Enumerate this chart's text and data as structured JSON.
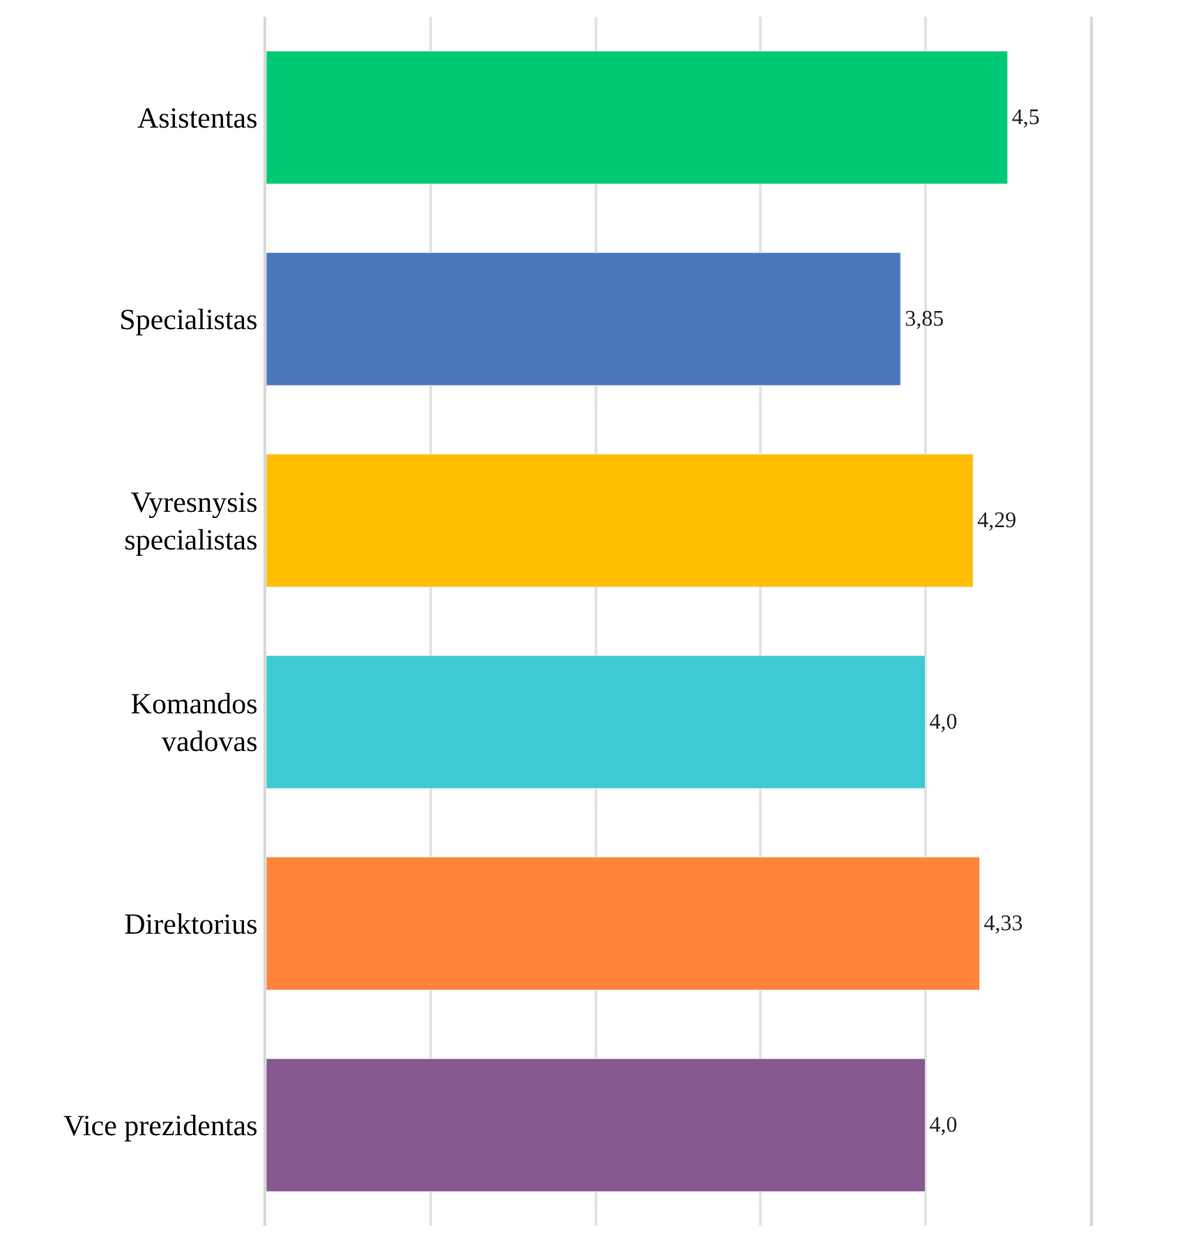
{
  "chart_data": {
    "type": "bar",
    "orientation": "horizontal",
    "categories": [
      "Asistentas",
      "Specialistas",
      "Vyresnysis\nspecialistas",
      "Komandos\nvadovas",
      "Direktorius",
      "Vice prezidentas"
    ],
    "values": [
      4.5,
      3.85,
      4.29,
      4.0,
      4.33,
      4.0
    ],
    "colors": [
      "#00c975",
      "#4a78bb",
      "#ffbf00",
      "#3ecbd0",
      "#ff8439",
      "#86588f"
    ],
    "value_labels": [
      "4,5",
      "3,85",
      "4,29",
      "4,0",
      "4,33",
      "4,0"
    ],
    "xlim": [
      0,
      5
    ],
    "xticks": [
      {
        "value": 0,
        "label": null
      },
      {
        "value": 1,
        "label": null
      },
      {
        "value": 2,
        "label": null
      },
      {
        "value": 3,
        "label": null
      },
      {
        "value": 4,
        "label": null
      },
      {
        "value": 5,
        "label": null
      }
    ],
    "tick_labels": "y",
    "grid": "x",
    "legend": false
  }
}
